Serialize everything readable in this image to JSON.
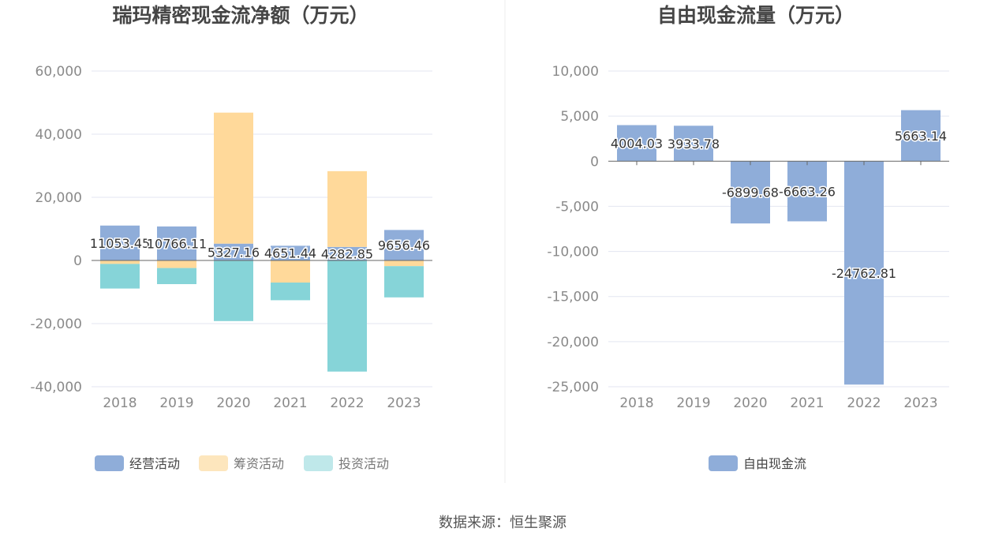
{
  "source": "数据来源：恒生聚源",
  "chart_data": [
    {
      "type": "bar",
      "stacked": true,
      "title": "瑞玛精密现金流净额（万元）",
      "categories": [
        "2018",
        "2019",
        "2020",
        "2021",
        "2022",
        "2023"
      ],
      "ylim": [
        -40000,
        60000
      ],
      "yticks": [
        "60,000",
        "40,000",
        "20,000",
        "0",
        "-20,000",
        "-40,000"
      ],
      "ytick_values": [
        60000,
        40000,
        20000,
        0,
        -20000,
        -40000
      ],
      "grid": true,
      "legend_position": "bottom",
      "series": [
        {
          "name": "经营活动",
          "color": "#8fadd9",
          "values": [
            11053.45,
            10766.11,
            5327.16,
            4651.44,
            4282.85,
            9656.46
          ]
        },
        {
          "name": "筹资活动",
          "color": "#ffd99a",
          "values": [
            -1100,
            -2400,
            41500,
            -7000,
            24000,
            -1800
          ]
        },
        {
          "name": "投资活动",
          "color": "#86d4d8",
          "values": [
            -7800,
            -5100,
            -19200,
            -5600,
            -35200,
            -9900
          ]
        }
      ],
      "data_labels": [
        "11053.45",
        "10766.11",
        "5327.16",
        "4651.44",
        "4282.85",
        "9656.46"
      ]
    },
    {
      "type": "bar",
      "title": "自由现金流量（万元）",
      "categories": [
        "2018",
        "2019",
        "2020",
        "2021",
        "2022",
        "2023"
      ],
      "ylim": [
        -25000,
        10000
      ],
      "yticks": [
        "10,000",
        "5,000",
        "0",
        "-5,000",
        "-10,000",
        "-15,000",
        "-20,000",
        "-25,000"
      ],
      "ytick_values": [
        10000,
        5000,
        0,
        -5000,
        -10000,
        -15000,
        -20000,
        -25000
      ],
      "grid": true,
      "legend_position": "bottom",
      "series": [
        {
          "name": "自由现金流",
          "color": "#8fadd9",
          "values": [
            4004.03,
            3933.78,
            -6899.68,
            -6663.26,
            -24762.81,
            5663.14
          ]
        }
      ],
      "data_labels": [
        "4004.03",
        "3933.78",
        "-6899.68",
        "-6663.26",
        "-24762.81",
        "5663.14"
      ]
    }
  ]
}
